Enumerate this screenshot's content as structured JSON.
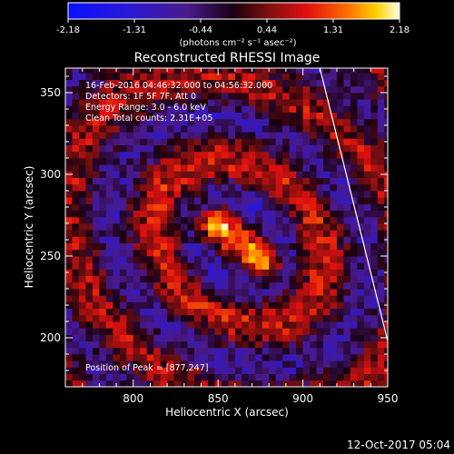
{
  "chart_data": {
    "type": "heatmap",
    "title": "Reconstructed RHESSI Image",
    "xlabel": "Heliocentric X (arcsec)",
    "ylabel": "Heliocentric Y (arcsec)",
    "xlim": [
      760,
      950
    ],
    "ylim": [
      170,
      365
    ],
    "xticks": [
      800,
      850,
      900,
      950
    ],
    "yticks": [
      200,
      250,
      300,
      350
    ],
    "colorbar": {
      "ticks": [
        "-2.18",
        "-1.31",
        "-0.44",
        "0.44",
        "1.31",
        "2.18"
      ],
      "range": [
        -2.18,
        2.18
      ],
      "label": "(photons cm⁻² s⁻¹ asec⁻²)"
    },
    "annotations": [
      "16-Feb-2016 04:46:32.000 to 04:56:32.000",
      "Detectors: 1F 5F 7F, Att 0",
      "Energy Range: 3.0 - 6.0 keV",
      "Clean    Total counts: 2.31E+05"
    ],
    "peak_label": "Position of Peak = [877,247]",
    "sources": [
      {
        "x": 848,
        "y": 270,
        "intensity": 2.18
      },
      {
        "x": 877,
        "y": 247,
        "intensity": 2.18
      }
    ],
    "limb_line": [
      [
        910,
        365
      ],
      [
        950,
        198
      ]
    ],
    "colors": {
      "background": "#000000",
      "text": "#ffffff",
      "limb": "#ffffff"
    }
  },
  "footer": {
    "timestamp": "12-Oct-2017 05:04"
  }
}
